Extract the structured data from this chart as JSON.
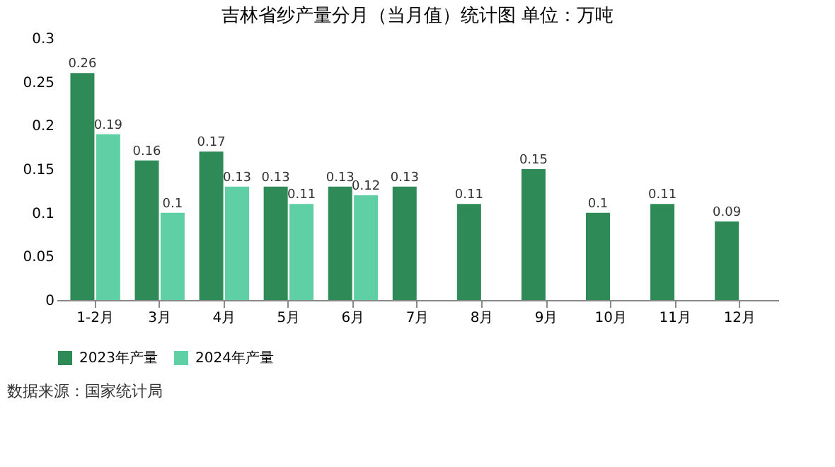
{
  "chart_data": {
    "type": "bar",
    "title": "吉林省纱产量分月（当月值）统计图 单位：万吨",
    "categories": [
      "1-2月",
      "3月",
      "4月",
      "5月",
      "6月",
      "7月",
      "8月",
      "9月",
      "10月",
      "11月",
      "12月"
    ],
    "series": [
      {
        "name": "2023年产量",
        "color": "#2e8b57",
        "values": [
          0.26,
          0.16,
          0.17,
          0.13,
          0.13,
          0.13,
          0.11,
          0.15,
          0.1,
          0.11,
          0.09
        ]
      },
      {
        "name": "2024年产量",
        "color": "#5fcfa5",
        "values": [
          0.19,
          0.1,
          0.13,
          0.11,
          0.12,
          null,
          null,
          null,
          null,
          null,
          null
        ]
      }
    ],
    "ylim": [
      0,
      0.3
    ],
    "yticks": [
      0,
      0.05,
      0.1,
      0.15,
      0.2,
      0.25,
      0.3
    ],
    "grid": false,
    "legend": "bottom",
    "data_labels": true,
    "annotations": [
      "数据来源：国家统计局"
    ]
  }
}
